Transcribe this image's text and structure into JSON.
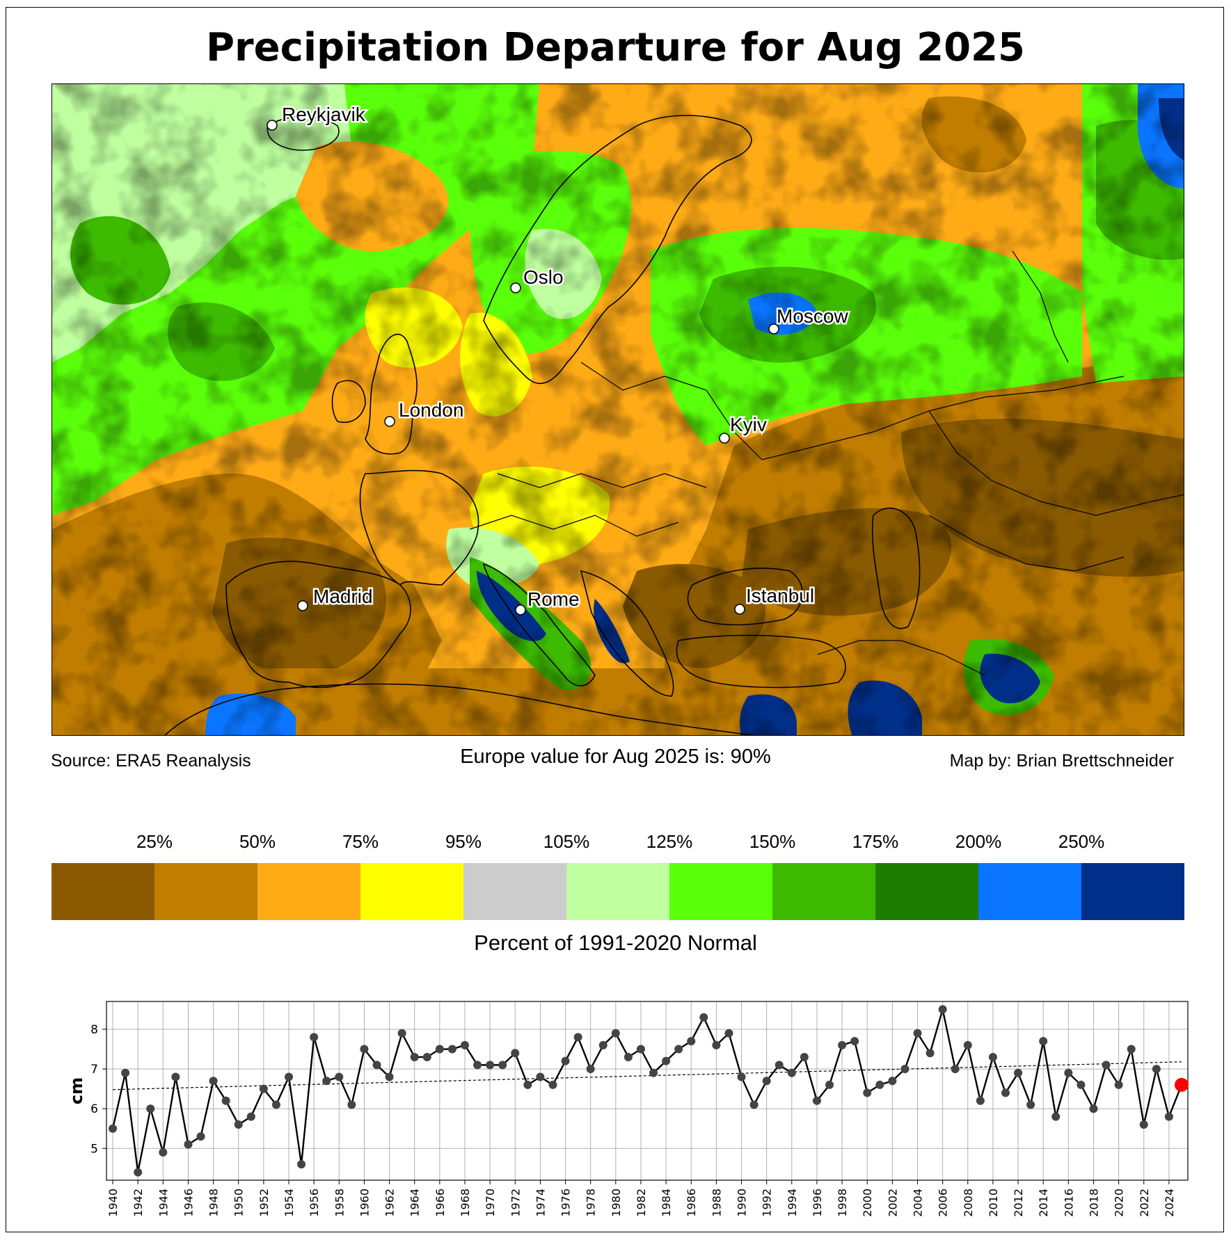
{
  "title": "Precipitation Departure for Aug 2025",
  "source": "Source: ERA5 Reanalysis",
  "europe_value": "Europe value for Aug 2025 is: 90%",
  "map_by": "Map by: Brian Brettschneider",
  "colorbar_title": "Percent of 1991-2020 Normal",
  "colorbar": {
    "colors": [
      "#8a5a00",
      "#c07d00",
      "#ffab16",
      "#ffff00",
      "#cccccc",
      "#bfff9f",
      "#5aff0a",
      "#3cbb00",
      "#1e7d00",
      "#0a75ff",
      "#002f89"
    ],
    "ticks": [
      "25%",
      "50%",
      "75%",
      "95%",
      "105%",
      "125%",
      "150%",
      "175%",
      "200%",
      "250%"
    ]
  },
  "cities": [
    "Reykjavik",
    "Oslo",
    "Moscow",
    "London",
    "Kyiv",
    "Madrid",
    "Rome",
    "Istanbul"
  ],
  "chart_data": {
    "type": "line",
    "title": "",
    "xlabel": "",
    "ylabel": "cm",
    "xlim": [
      1939.5,
      2025.5
    ],
    "ylim": [
      4.2,
      8.7
    ],
    "yticks": [
      5,
      6,
      7,
      8
    ],
    "xticks": [
      1940,
      1942,
      1944,
      1946,
      1948,
      1950,
      1952,
      1954,
      1956,
      1958,
      1960,
      1962,
      1964,
      1966,
      1968,
      1970,
      1972,
      1974,
      1976,
      1978,
      1980,
      1982,
      1984,
      1986,
      1988,
      1990,
      1992,
      1994,
      1996,
      1998,
      2000,
      2002,
      2004,
      2006,
      2008,
      2010,
      2012,
      2014,
      2016,
      2018,
      2020,
      2022,
      2024
    ],
    "grid": true,
    "series": [
      {
        "name": "August precipitation",
        "x": [
          1940,
          1941,
          1942,
          1943,
          1944,
          1945,
          1946,
          1947,
          1948,
          1949,
          1950,
          1951,
          1952,
          1953,
          1954,
          1955,
          1956,
          1957,
          1958,
          1959,
          1960,
          1961,
          1962,
          1963,
          1964,
          1965,
          1966,
          1967,
          1968,
          1969,
          1970,
          1971,
          1972,
          1973,
          1974,
          1975,
          1976,
          1977,
          1978,
          1979,
          1980,
          1981,
          1982,
          1983,
          1984,
          1985,
          1986,
          1987,
          1988,
          1989,
          1990,
          1991,
          1992,
          1993,
          1994,
          1995,
          1996,
          1997,
          1998,
          1999,
          2000,
          2001,
          2002,
          2003,
          2004,
          2005,
          2006,
          2007,
          2008,
          2009,
          2010,
          2011,
          2012,
          2013,
          2014,
          2015,
          2016,
          2017,
          2018,
          2019,
          2020,
          2021,
          2022,
          2023,
          2024
        ],
        "values": [
          5.5,
          6.9,
          4.4,
          6.0,
          4.9,
          6.8,
          5.1,
          5.3,
          6.7,
          6.2,
          5.6,
          5.8,
          6.5,
          6.1,
          6.8,
          4.6,
          7.8,
          6.7,
          6.8,
          6.1,
          7.5,
          7.1,
          6.8,
          7.9,
          7.3,
          7.3,
          7.5,
          7.5,
          7.6,
          7.1,
          7.1,
          7.1,
          7.4,
          6.6,
          6.8,
          6.6,
          7.2,
          7.8,
          7.0,
          7.6,
          7.9,
          7.3,
          7.5,
          6.9,
          7.2,
          7.5,
          7.7,
          8.3,
          7.6,
          7.9,
          6.8,
          6.1,
          6.7,
          7.1,
          6.9,
          7.3,
          6.2,
          6.6,
          7.6,
          7.7,
          6.4,
          6.6,
          6.7,
          7.0,
          7.9,
          7.4,
          8.5,
          7.0,
          7.6,
          6.2,
          7.3,
          6.4,
          6.9,
          6.1,
          7.7,
          5.8,
          6.9,
          6.6,
          6.0,
          7.1,
          6.6,
          7.5,
          5.6,
          7.0,
          5.8
        ]
      },
      {
        "name": "Linear trend",
        "x": [
          1940,
          2025
        ],
        "values": [
          6.48,
          7.18
        ]
      },
      {
        "name": "Aug 2025",
        "x": [
          2025
        ],
        "values": [
          6.6
        ]
      }
    ]
  }
}
